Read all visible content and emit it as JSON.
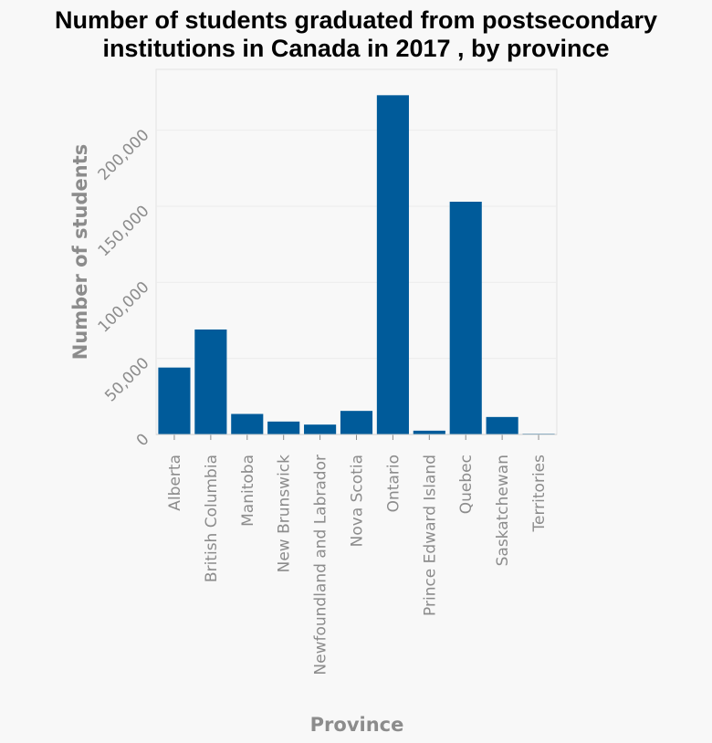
{
  "chart_data": {
    "type": "bar",
    "title_lines": [
      "Number of students graduated from postsecondary",
      "institutions in Canada in 2017 , by province"
    ],
    "xlabel": "Province",
    "ylabel": "Number of students",
    "categories": [
      "Alberta",
      "British Columbia",
      "Manitoba",
      "New Brunswick",
      "Newfoundland and Labrador",
      "Nova Scotia",
      "Ontario",
      "Prince Edward Island",
      "Quebec",
      "Saskatchewan",
      "Territories"
    ],
    "values": [
      44000,
      69000,
      13500,
      8500,
      6500,
      15500,
      223000,
      2500,
      153000,
      11500,
      500
    ],
    "ylim": [
      0,
      240000
    ],
    "yticks": [
      0,
      50000,
      100000,
      150000,
      200000
    ],
    "ytick_labels": [
      "0",
      "50,000",
      "100,000",
      "150,000",
      "200,000"
    ],
    "grid": true,
    "legend": "none",
    "bar_color": "#005b9a"
  }
}
